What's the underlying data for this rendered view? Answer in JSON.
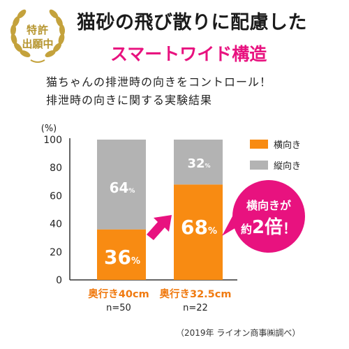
{
  "badge": {
    "line1": "特許",
    "line2": "出願中"
  },
  "headline": "猫砂の飛び散りに配慮した",
  "subhead": "スマートワイド構造",
  "caption_line1": "猫ちゃんの排泄時の向きをコントロール！",
  "caption_line2": "排泄時の向きに関する実験結果",
  "source": "（2019年 ライオン商事㈱調べ）",
  "callout": {
    "line1": "横向きが",
    "line2_prefix": "約",
    "line2_emph": "2倍",
    "line2_suffix": "！"
  },
  "colors": {
    "orange": "#f88b12",
    "gray": "#b3b3b3",
    "pink": "#e8127f",
    "category_orange": "#f07a10"
  },
  "chart_data": {
    "type": "bar",
    "stacked": true,
    "unit_label": "(%)",
    "ylim": [
      0,
      100
    ],
    "yticks": [
      "0",
      "20",
      "40",
      "60",
      "80",
      "100"
    ],
    "categories": [
      "奥行き40cm",
      "奥行き32.5cm"
    ],
    "sample_sizes": [
      "n=50",
      "n=22"
    ],
    "series": [
      {
        "name": "横向き",
        "values": [
          36,
          68
        ],
        "color": "#f88b12",
        "labels": [
          "36",
          "68"
        ]
      },
      {
        "name": "縦向き",
        "values": [
          64,
          32
        ],
        "color": "#b3b3b3",
        "labels": [
          "64",
          "32"
        ]
      }
    ],
    "value_suffix": "%",
    "legend_position": "top-right"
  }
}
